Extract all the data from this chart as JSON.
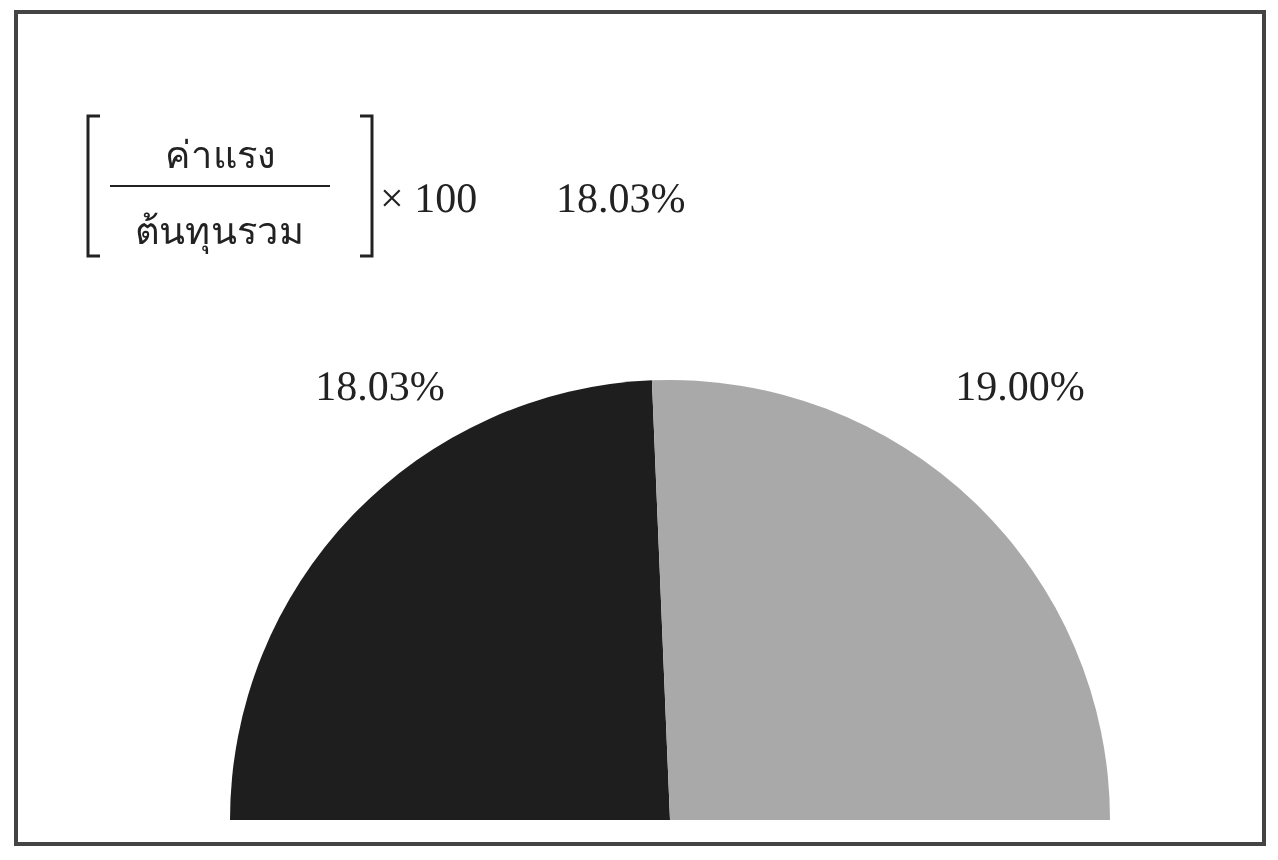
{
  "chart_data": {
    "type": "pie",
    "categories": [
      null,
      null
    ],
    "values": [
      18.03,
      19.0
    ],
    "colors": [
      "#1e1e1e",
      "#a9a9a9"
    ],
    "value_labels": [
      "18.03%",
      "19.00%"
    ],
    "annotations": [
      "ค่าแรง",
      "ต้นทุนรวม",
      "× 100",
      "18.03%"
    ]
  }
}
